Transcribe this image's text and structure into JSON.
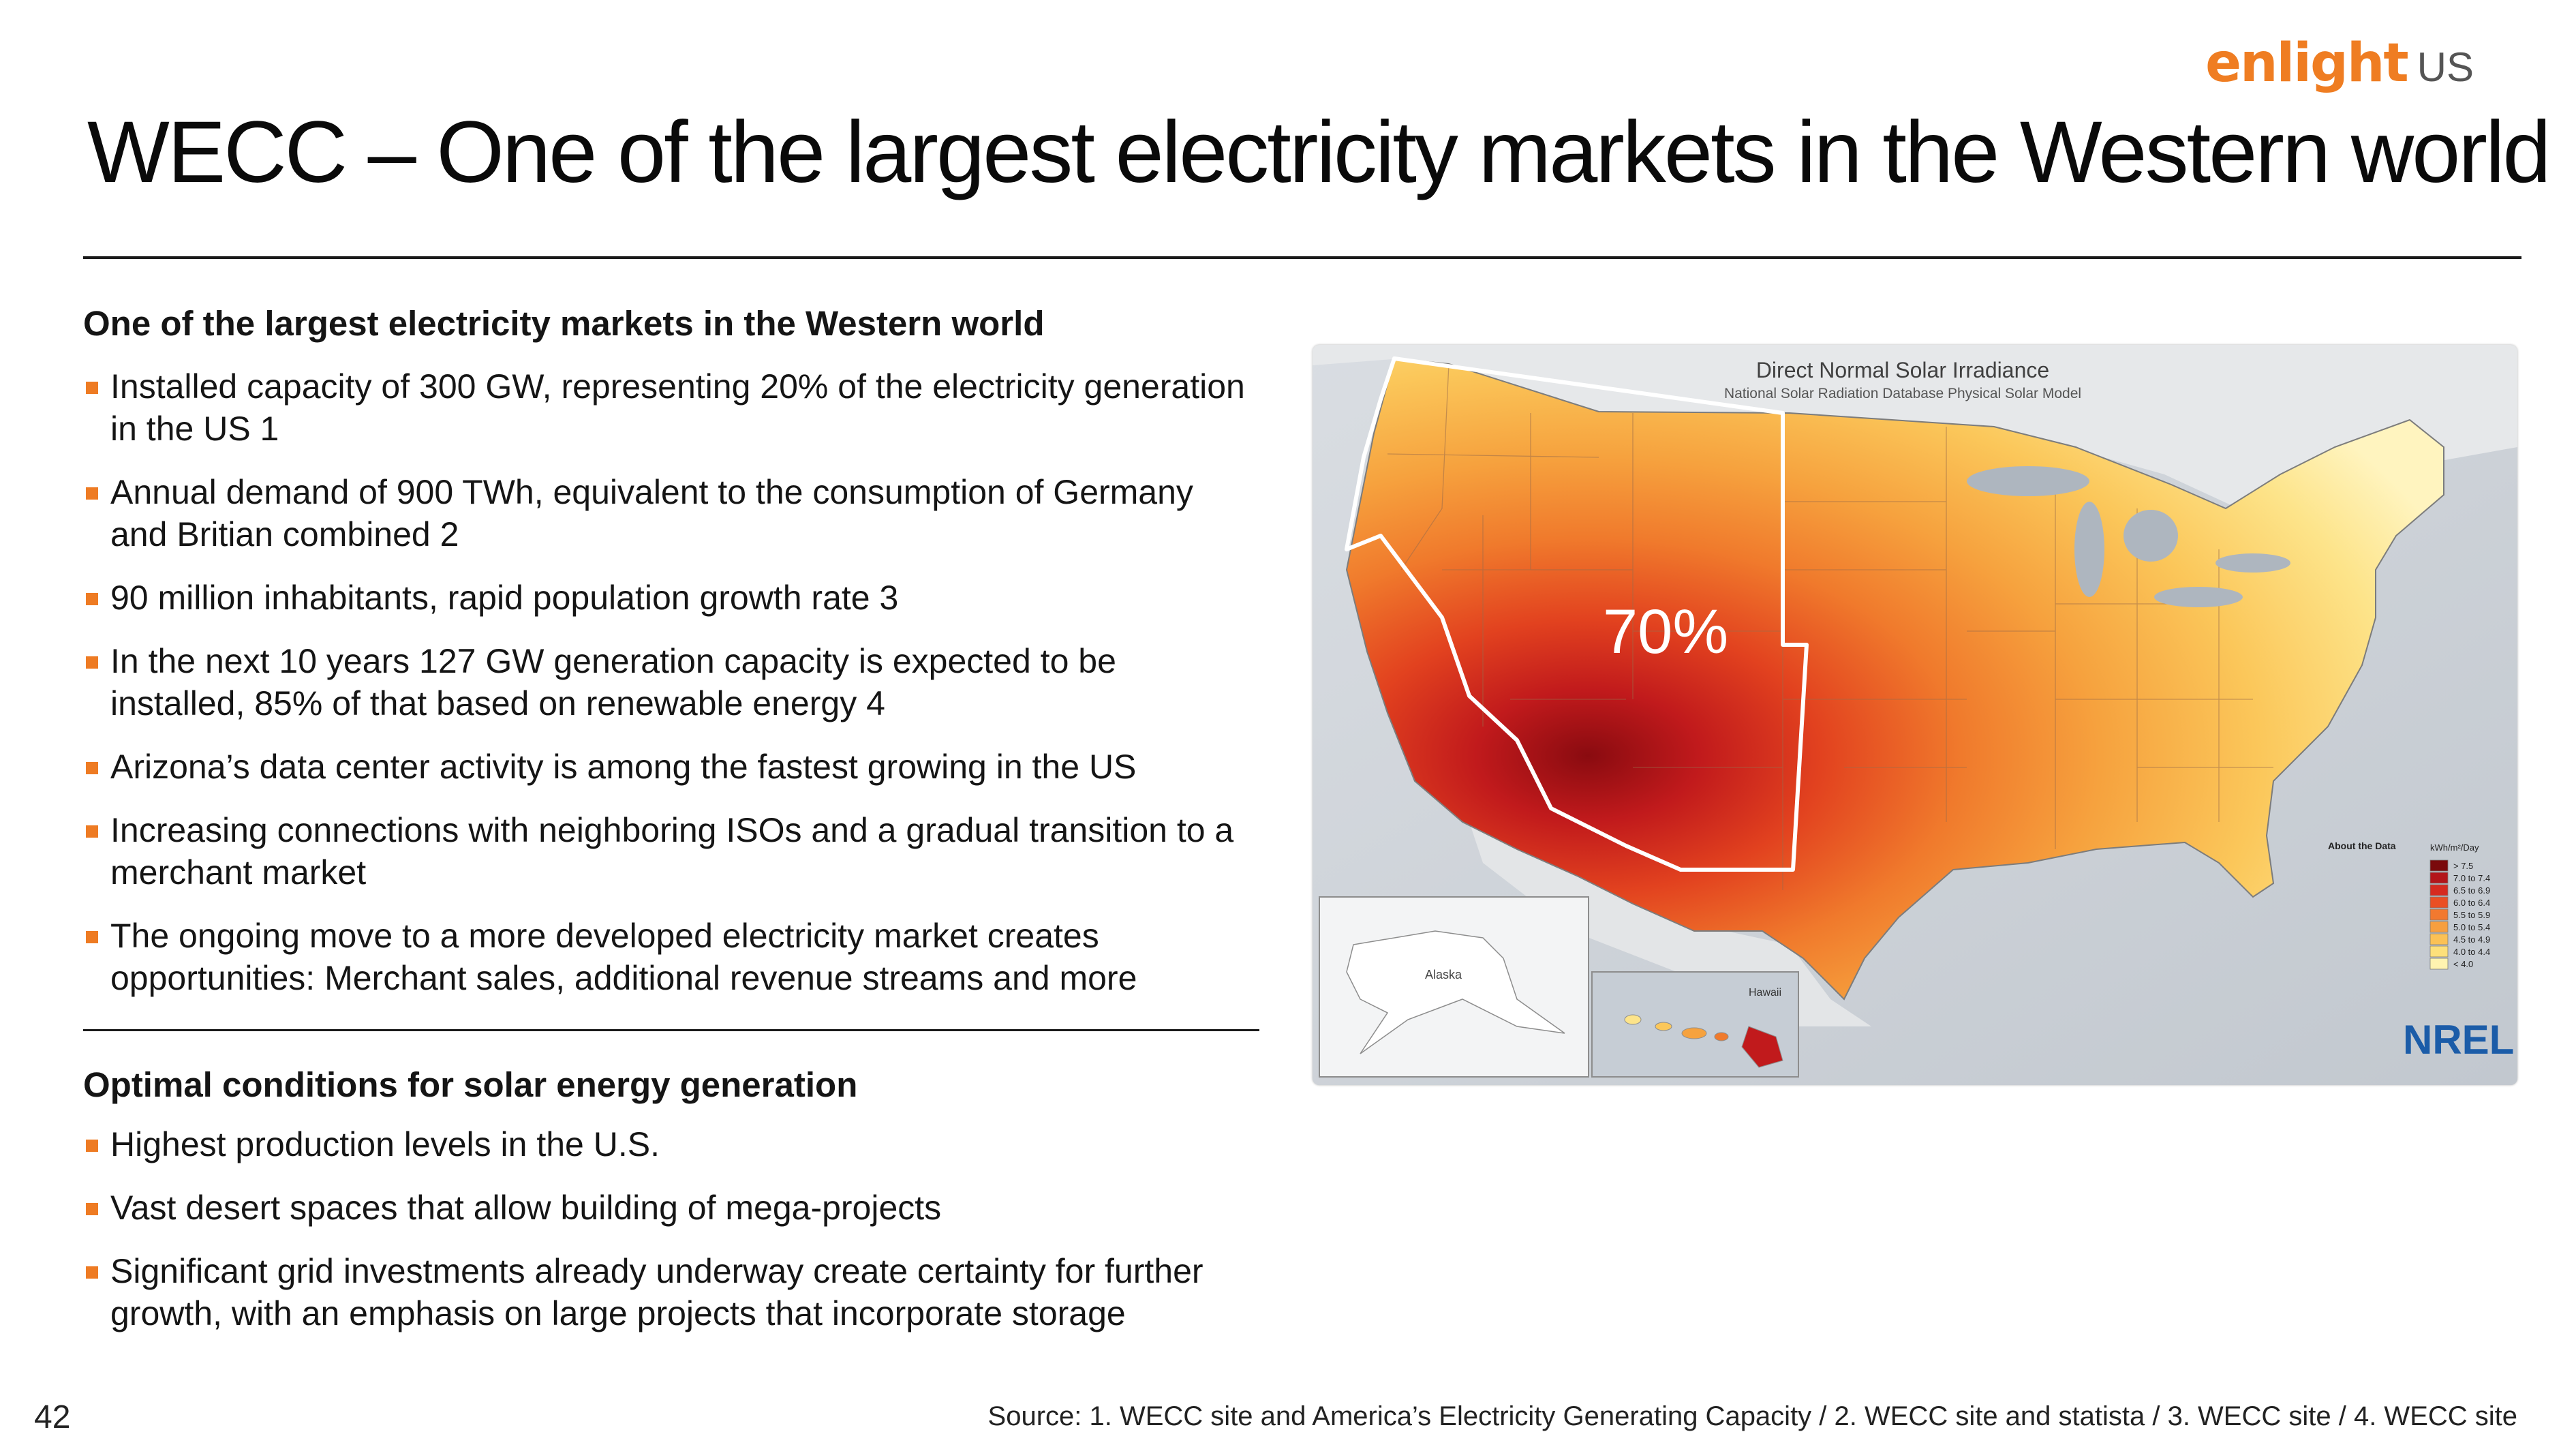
{
  "brand": {
    "name": "enlight",
    "region": "US"
  },
  "title": "WECC – One of the largest electricity markets in the Western world",
  "section1": {
    "heading": "One of the largest electricity markets in the Western world",
    "bullets": [
      "Installed capacity of 300 GW, representing 20% of the electricity generation in the US 1",
      "Annual demand of 900 TWh, equivalent to the consumption of Germany and Britian combined 2",
      "90 million inhabitants, rapid population growth rate 3",
      "In the next 10 years 127 GW generation capacity is expected to be installed, 85% of that based on renewable energy 4",
      "Arizona’s data center activity is among the fastest growing in the US",
      "Increasing connections with neighboring ISOs and a gradual transition to a merchant market",
      "The ongoing move to a more developed electricity market creates opportunities: Merchant sales, additional revenue streams and more"
    ]
  },
  "section2": {
    "heading": "Optimal conditions for solar energy generation",
    "bullets": [
      "Highest production levels in the U.S.",
      "Vast desert spaces that allow building of mega-projects",
      "Significant grid investments already underway create certainty for further growth, with an emphasis on large projects that incorporate storage"
    ]
  },
  "map": {
    "title": "Direct Normal Solar Irradiance",
    "subtitle": "National Solar Radiation Database Physical Solar Model",
    "overlay_label": "70%",
    "inset_alaska_label": "Alaska",
    "inset_hawaii_label": "Hawaii",
    "legend_title": "About the Data",
    "legend_units": "kWh/m²/Day",
    "legend_classes": [
      "> 7.5",
      "7.0 to 7.4",
      "6.5 to 6.9",
      "6.0 to 6.4",
      "5.5 to 5.9",
      "5.0 to 5.4",
      "4.5 to 4.9",
      "4.0 to 4.4",
      "< 4.0"
    ],
    "legend_colors": [
      "#7a0a0c",
      "#b3151a",
      "#d62a1f",
      "#ea4f24",
      "#f2792f",
      "#f79f3f",
      "#fbc155",
      "#fde07a",
      "#fff3b0"
    ],
    "logo": "NREL",
    "highlight_color": "#ffffff"
  },
  "footer": {
    "page_number": "42",
    "source": "Source: 1. WECC site and America’s Electricity Generating Capacity  /  2. WECC site and statista  /  3. WECC site  /  4. WECC site"
  }
}
